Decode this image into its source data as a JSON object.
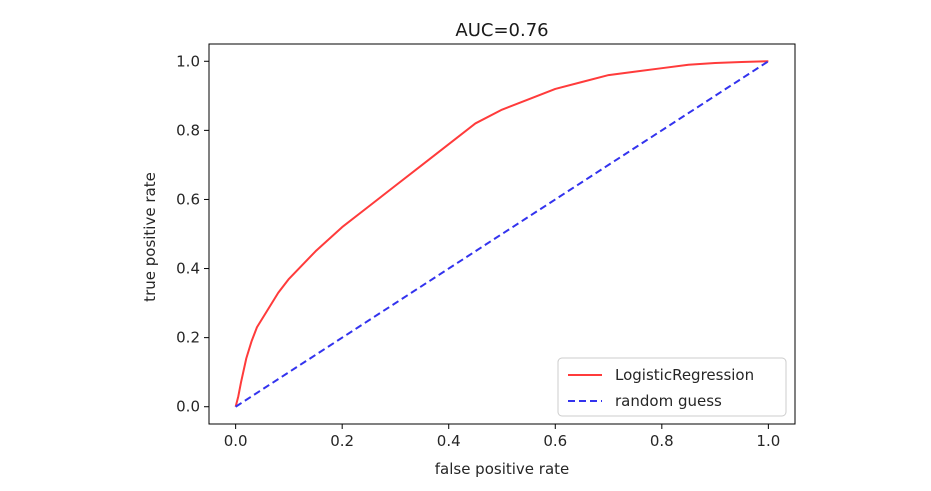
{
  "chart_data": {
    "type": "line",
    "title": "AUC=0.76",
    "xlabel": "false positive rate",
    "ylabel": "true positive rate",
    "xlim": [
      -0.05,
      1.05
    ],
    "ylim": [
      -0.05,
      1.05
    ],
    "xticks": [
      0.0,
      0.2,
      0.4,
      0.6,
      0.8,
      1.0
    ],
    "yticks": [
      0.0,
      0.2,
      0.4,
      0.6,
      0.8,
      1.0
    ],
    "xtick_labels": [
      "0.0",
      "0.2",
      "0.4",
      "0.6",
      "0.8",
      "1.0"
    ],
    "ytick_labels": [
      "0.0",
      "0.2",
      "0.4",
      "0.6",
      "0.8",
      "1.0"
    ],
    "grid": false,
    "legend_position": "lower-right",
    "series": [
      {
        "name": "LogisticRegression",
        "color": "#ff3b3b",
        "style": "solid",
        "x": [
          0.0,
          0.005,
          0.01,
          0.02,
          0.03,
          0.04,
          0.06,
          0.08,
          0.1,
          0.15,
          0.2,
          0.25,
          0.3,
          0.35,
          0.4,
          0.45,
          0.5,
          0.55,
          0.6,
          0.65,
          0.7,
          0.75,
          0.8,
          0.85,
          0.9,
          0.95,
          1.0
        ],
        "y": [
          0.0,
          0.03,
          0.07,
          0.14,
          0.19,
          0.23,
          0.28,
          0.33,
          0.37,
          0.45,
          0.52,
          0.58,
          0.64,
          0.7,
          0.76,
          0.82,
          0.86,
          0.89,
          0.92,
          0.94,
          0.96,
          0.97,
          0.98,
          0.99,
          0.995,
          0.998,
          1.0
        ]
      },
      {
        "name": "random guess",
        "color": "#3333ee",
        "style": "dashed",
        "x": [
          0.0,
          1.0
        ],
        "y": [
          0.0,
          1.0
        ]
      }
    ]
  }
}
